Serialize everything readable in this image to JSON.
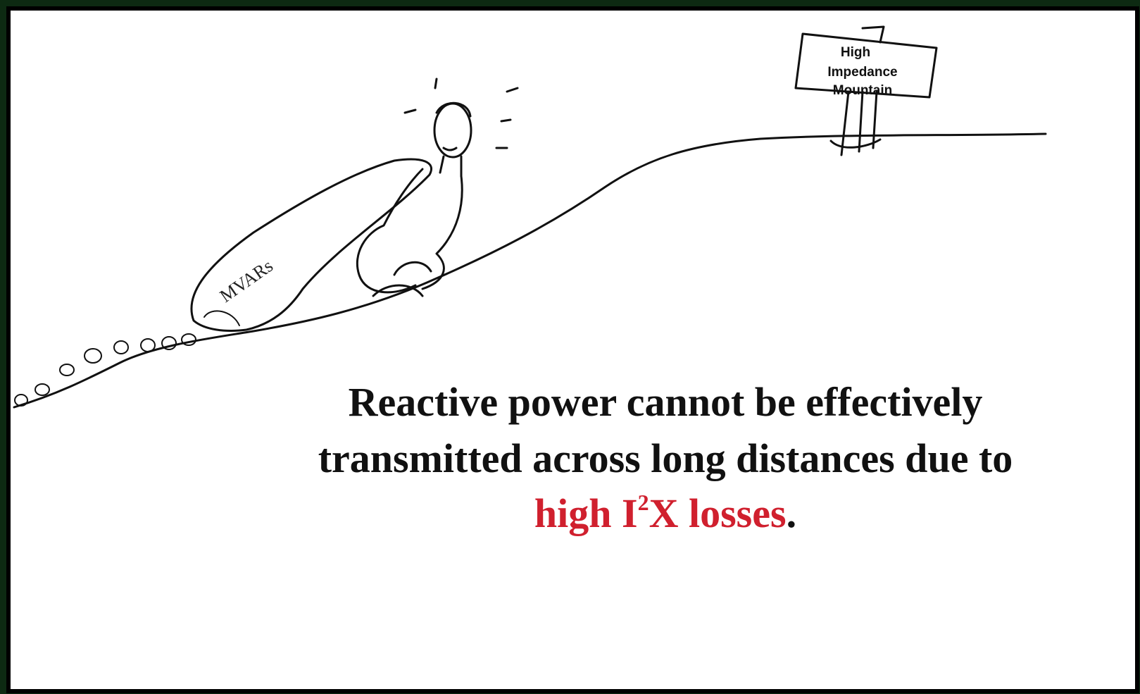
{
  "sign": {
    "lines": [
      "High",
      "Impedance",
      "Mountain"
    ]
  },
  "bag": {
    "label": "MVARs"
  },
  "caption": {
    "line1": "Reactive power cannot be effectively",
    "line2": "transmitted across long distances due to",
    "line3": {
      "red_before": "high I",
      "superscript": "2",
      "red_after": "X losses",
      "end": "."
    }
  }
}
